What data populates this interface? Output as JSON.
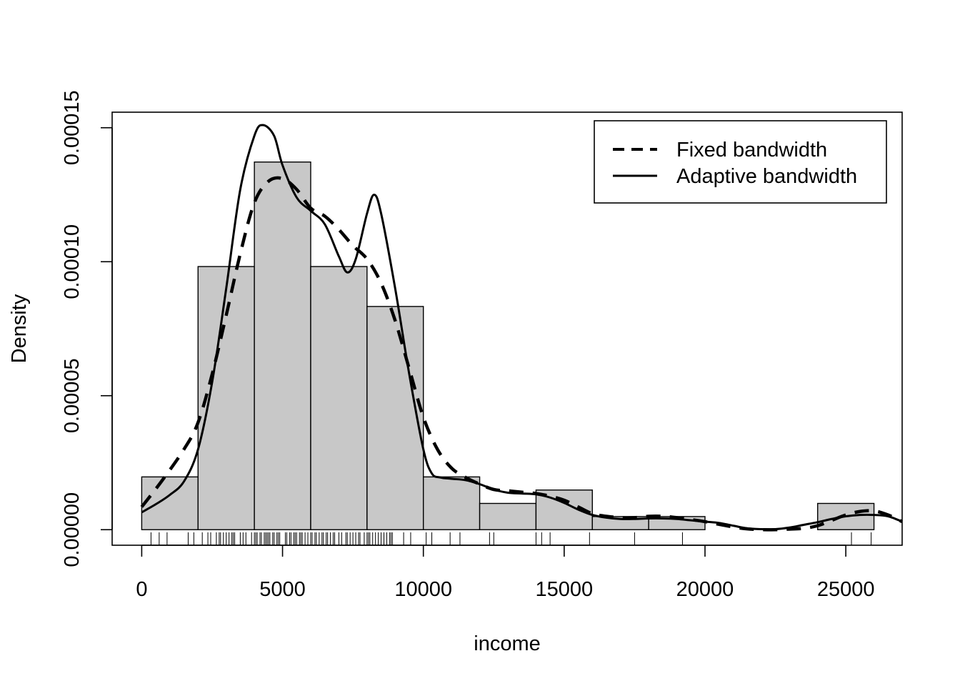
{
  "chart_data": {
    "type": "histogram",
    "xlabel": "income",
    "ylabel": "Density",
    "xlim": [
      -1050,
      27000
    ],
    "ylim": [
      -5.8e-06,
      0.0001558
    ],
    "x_ticks": [
      "0",
      "5000",
      "10000",
      "15000",
      "20000",
      "25000"
    ],
    "y_ticks": [
      "0.00000",
      "0.00005",
      "0.00010",
      "0.00015"
    ],
    "grid": false,
    "legend_position": "top-right",
    "colors": {
      "bar_fill": "#c8c8c8",
      "stroke": "#000000"
    },
    "histogram": {
      "bins": [
        {
          "x0": 0,
          "x1": 2000,
          "density": 1.97e-05
        },
        {
          "x0": 2000,
          "x1": 4000,
          "density": 9.82e-05
        },
        {
          "x0": 4000,
          "x1": 6000,
          "density": 0.0001372
        },
        {
          "x0": 6000,
          "x1": 8000,
          "density": 9.82e-05
        },
        {
          "x0": 8000,
          "x1": 10000,
          "density": 8.33e-05
        },
        {
          "x0": 10000,
          "x1": 12000,
          "density": 1.97e-05
        },
        {
          "x0": 12000,
          "x1": 14000,
          "density": 9.8e-06
        },
        {
          "x0": 14000,
          "x1": 16000,
          "density": 1.48e-05
        },
        {
          "x0": 16000,
          "x1": 18000,
          "density": 4.9e-06
        },
        {
          "x0": 18000,
          "x1": 20000,
          "density": 4.9e-06
        },
        {
          "x0": 20000,
          "x1": 22000,
          "density": 0
        },
        {
          "x0": 22000,
          "x1": 24000,
          "density": 0
        },
        {
          "x0": 24000,
          "x1": 26000,
          "density": 9.8e-06
        }
      ]
    },
    "series": [
      {
        "name": "Fixed bandwidth",
        "style": "dashed",
        "points": [
          [
            0,
            8.5e-06
          ],
          [
            700,
            1.8e-05
          ],
          [
            1500,
            3e-05
          ],
          [
            2000,
            4e-05
          ],
          [
            2500,
            5.8e-05
          ],
          [
            3000,
            8e-05
          ],
          [
            3500,
            0.000103
          ],
          [
            4000,
            0.000122
          ],
          [
            4500,
            0.00013
          ],
          [
            5000,
            0.000131
          ],
          [
            5500,
            0.000127
          ],
          [
            6000,
            0.00012
          ],
          [
            6500,
            0.000117
          ],
          [
            7000,
            0.000112
          ],
          [
            7500,
            0.000106
          ],
          [
            8000,
            0.000101
          ],
          [
            8500,
            9.2e-05
          ],
          [
            9000,
            7.8e-05
          ],
          [
            9500,
            6e-05
          ],
          [
            10000,
            4.2e-05
          ],
          [
            10500,
            3e-05
          ],
          [
            11000,
            2.3e-05
          ],
          [
            11500,
            1.95e-05
          ],
          [
            12000,
            1.7e-05
          ],
          [
            12500,
            1.5e-05
          ],
          [
            13000,
            1.45e-05
          ],
          [
            13500,
            1.4e-05
          ],
          [
            14000,
            1.35e-05
          ],
          [
            14500,
            1.25e-05
          ],
          [
            15000,
            1.1e-05
          ],
          [
            15500,
            8.5e-06
          ],
          [
            16000,
            6e-06
          ],
          [
            16500,
            5e-06
          ],
          [
            17000,
            4.5e-06
          ],
          [
            17500,
            4.5e-06
          ],
          [
            18000,
            5e-06
          ],
          [
            18500,
            5e-06
          ],
          [
            19000,
            4.5e-06
          ],
          [
            19500,
            3.8e-06
          ],
          [
            20000,
            3e-06
          ],
          [
            20500,
            2e-06
          ],
          [
            21000,
            1e-06
          ],
          [
            21500,
            3e-07
          ],
          [
            22000,
            0
          ],
          [
            22500,
            0
          ],
          [
            23000,
            2e-07
          ],
          [
            23500,
            5e-07
          ],
          [
            24000,
            1.5e-06
          ],
          [
            24500,
            3.5e-06
          ],
          [
            25000,
            5.5e-06
          ],
          [
            25500,
            6.8e-06
          ],
          [
            26000,
            7e-06
          ],
          [
            26500,
            5.5e-06
          ],
          [
            27000,
            3e-06
          ]
        ]
      },
      {
        "name": "Adaptive bandwidth",
        "style": "solid",
        "points": [
          [
            0,
            6.5e-06
          ],
          [
            500,
            9.5e-06
          ],
          [
            1000,
            1.3e-05
          ],
          [
            1500,
            1.8e-05
          ],
          [
            2000,
            3e-05
          ],
          [
            2500,
            5.5e-05
          ],
          [
            3000,
            9e-05
          ],
          [
            3500,
            0.000127
          ],
          [
            4000,
            0.000147
          ],
          [
            4300,
            0.000151
          ],
          [
            4700,
            0.000147
          ],
          [
            5000,
            0.000136
          ],
          [
            5500,
            0.000124
          ],
          [
            6000,
            0.000119
          ],
          [
            6500,
            0.000114
          ],
          [
            7000,
            0.000102
          ],
          [
            7300,
            9.6e-05
          ],
          [
            7600,
            0.000101
          ],
          [
            8000,
            0.000118
          ],
          [
            8250,
            0.000125
          ],
          [
            8500,
            0.000118
          ],
          [
            9000,
            9e-05
          ],
          [
            9500,
            5.8e-05
          ],
          [
            10000,
            3e-05
          ],
          [
            10300,
            2.1e-05
          ],
          [
            10600,
            1.95e-05
          ],
          [
            11000,
            1.9e-05
          ],
          [
            11500,
            1.85e-05
          ],
          [
            12000,
            1.7e-05
          ],
          [
            12500,
            1.5e-05
          ],
          [
            13000,
            1.38e-05
          ],
          [
            13500,
            1.35e-05
          ],
          [
            14000,
            1.32e-05
          ],
          [
            14500,
            1.2e-05
          ],
          [
            15000,
            1e-05
          ],
          [
            15500,
            7.5e-06
          ],
          [
            16000,
            5.5e-06
          ],
          [
            16500,
            4.5e-06
          ],
          [
            17000,
            4e-06
          ],
          [
            17500,
            4e-06
          ],
          [
            18000,
            4.2e-06
          ],
          [
            18500,
            4.2e-06
          ],
          [
            19000,
            4e-06
          ],
          [
            19500,
            3.5e-06
          ],
          [
            20000,
            3e-06
          ],
          [
            20500,
            2.5e-06
          ],
          [
            21000,
            1.5e-06
          ],
          [
            21500,
            5e-07
          ],
          [
            22000,
            2e-07
          ],
          [
            22500,
            2e-07
          ],
          [
            23000,
            8e-07
          ],
          [
            23500,
            1.8e-06
          ],
          [
            24000,
            2.8e-06
          ],
          [
            24500,
            4e-06
          ],
          [
            25000,
            5e-06
          ],
          [
            25500,
            5.5e-06
          ],
          [
            26000,
            5.5e-06
          ],
          [
            26500,
            5e-06
          ],
          [
            27000,
            3e-06
          ]
        ]
      }
    ],
    "rug": [
      330,
      620,
      900,
      1650,
      1850,
      2150,
      2350,
      2450,
      2650,
      2750,
      2800,
      2900,
      3000,
      3100,
      3200,
      3250,
      3300,
      3500,
      3600,
      3700,
      3900,
      4000,
      4050,
      4100,
      4200,
      4250,
      4350,
      4400,
      4450,
      4500,
      4550,
      4650,
      4700,
      4800,
      4850,
      4900,
      5100,
      5150,
      5250,
      5300,
      5400,
      5450,
      5500,
      5600,
      5650,
      5700,
      5800,
      5900,
      6000,
      6050,
      6150,
      6200,
      6300,
      6400,
      6450,
      6550,
      6600,
      6700,
      6800,
      6850,
      7000,
      7100,
      7250,
      7300,
      7400,
      7500,
      7600,
      7700,
      7750,
      7900,
      8000,
      8050,
      8100,
      8200,
      8300,
      8400,
      8500,
      8600,
      8700,
      8800,
      8850,
      8900,
      9300,
      9550,
      10100,
      10300,
      10950,
      11300,
      12350,
      12500,
      14000,
      14200,
      14500,
      15900,
      17500,
      19200,
      25200,
      25900
    ]
  }
}
